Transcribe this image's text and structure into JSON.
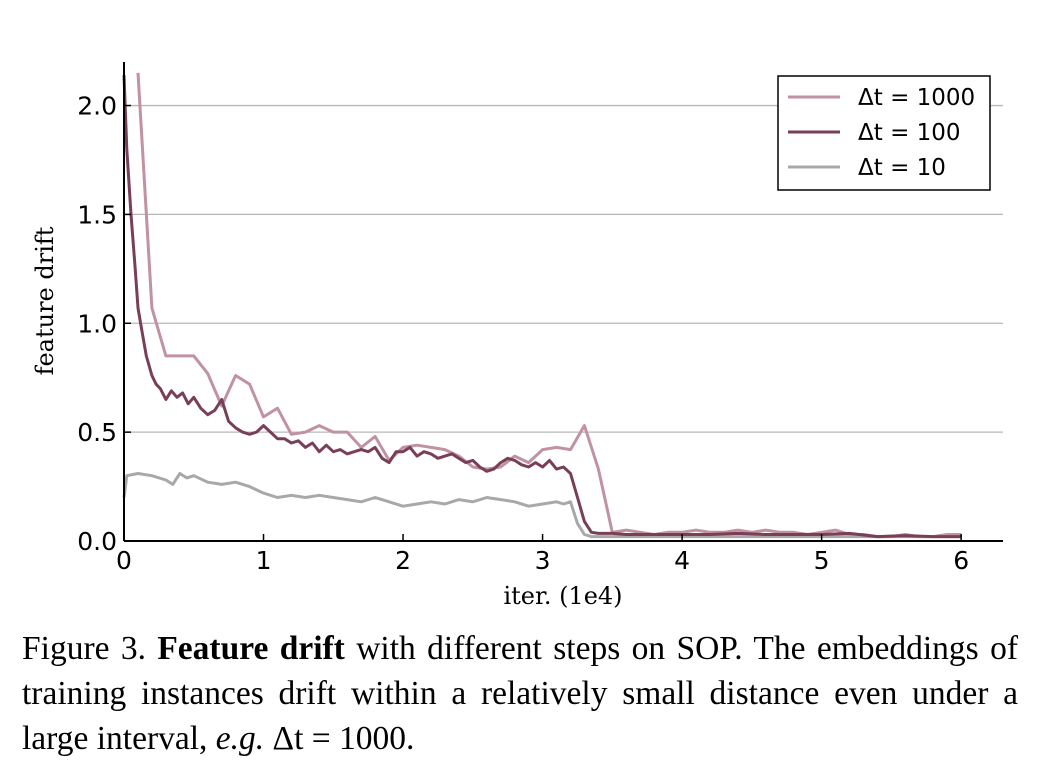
{
  "chart_data": {
    "type": "line",
    "xlabel": "iter. (1e4)",
    "ylabel": "feature drift",
    "xlim": [
      0,
      6.3
    ],
    "ylim": [
      0,
      2.2
    ],
    "x_ticks": [
      "0",
      "1",
      "2",
      "3",
      "4",
      "5",
      "6"
    ],
    "y_ticks": [
      "0.0",
      "0.5",
      "1.0",
      "1.5",
      "2.0"
    ],
    "grid": "horizontal",
    "legend_position": "top-right",
    "series": [
      {
        "name": "Δt = 1000",
        "color": "#c1929f",
        "x": [
          0.1,
          0.2,
          0.3,
          0.4,
          0.5,
          0.6,
          0.7,
          0.8,
          0.9,
          1.0,
          1.1,
          1.2,
          1.3,
          1.4,
          1.5,
          1.6,
          1.7,
          1.8,
          1.9,
          2.0,
          2.1,
          2.2,
          2.3,
          2.4,
          2.5,
          2.6,
          2.7,
          2.8,
          2.9,
          3.0,
          3.1,
          3.2,
          3.3,
          3.4,
          3.5,
          3.6,
          3.7,
          3.8,
          3.9,
          4.0,
          4.1,
          4.2,
          4.3,
          4.4,
          4.5,
          4.6,
          4.7,
          4.8,
          4.9,
          5.0,
          5.1,
          5.2,
          5.3,
          5.4,
          5.5,
          5.6,
          5.7,
          5.8,
          5.9,
          6.0
        ],
        "y": [
          2.15,
          1.07,
          0.85,
          0.85,
          0.85,
          0.77,
          0.62,
          0.76,
          0.72,
          0.57,
          0.61,
          0.49,
          0.5,
          0.53,
          0.5,
          0.5,
          0.43,
          0.48,
          0.37,
          0.43,
          0.44,
          0.43,
          0.42,
          0.39,
          0.34,
          0.33,
          0.34,
          0.39,
          0.36,
          0.42,
          0.43,
          0.42,
          0.53,
          0.33,
          0.04,
          0.05,
          0.04,
          0.03,
          0.04,
          0.04,
          0.05,
          0.04,
          0.04,
          0.05,
          0.04,
          0.05,
          0.04,
          0.04,
          0.03,
          0.04,
          0.05,
          0.03,
          0.03,
          0.02,
          0.02,
          0.03,
          0.02,
          0.02,
          0.03,
          0.03
        ]
      },
      {
        "name": "Δt = 100",
        "color": "#7a3f58",
        "x": [
          0.0,
          0.02,
          0.05,
          0.08,
          0.1,
          0.13,
          0.16,
          0.2,
          0.23,
          0.26,
          0.3,
          0.34,
          0.38,
          0.42,
          0.46,
          0.5,
          0.55,
          0.6,
          0.65,
          0.7,
          0.75,
          0.8,
          0.85,
          0.9,
          0.95,
          1.0,
          1.05,
          1.1,
          1.15,
          1.2,
          1.25,
          1.3,
          1.35,
          1.4,
          1.45,
          1.5,
          1.55,
          1.6,
          1.65,
          1.7,
          1.75,
          1.8,
          1.85,
          1.9,
          1.95,
          2.0,
          2.05,
          2.1,
          2.15,
          2.2,
          2.25,
          2.3,
          2.35,
          2.4,
          2.45,
          2.5,
          2.55,
          2.6,
          2.65,
          2.7,
          2.75,
          2.8,
          2.85,
          2.9,
          2.95,
          3.0,
          3.05,
          3.1,
          3.15,
          3.2,
          3.25,
          3.3,
          3.35,
          3.4,
          3.5,
          3.6,
          3.8,
          4.0,
          4.2,
          4.4,
          4.6,
          4.8,
          5.0,
          5.2,
          5.4,
          5.6,
          5.8,
          6.0
        ],
        "y": [
          2.14,
          1.8,
          1.5,
          1.25,
          1.07,
          0.96,
          0.85,
          0.76,
          0.72,
          0.7,
          0.65,
          0.69,
          0.66,
          0.68,
          0.63,
          0.66,
          0.61,
          0.58,
          0.6,
          0.65,
          0.55,
          0.52,
          0.5,
          0.49,
          0.5,
          0.53,
          0.5,
          0.47,
          0.47,
          0.45,
          0.46,
          0.43,
          0.45,
          0.41,
          0.44,
          0.41,
          0.42,
          0.4,
          0.41,
          0.42,
          0.41,
          0.43,
          0.38,
          0.36,
          0.41,
          0.41,
          0.43,
          0.39,
          0.41,
          0.4,
          0.38,
          0.39,
          0.4,
          0.38,
          0.36,
          0.37,
          0.34,
          0.32,
          0.33,
          0.36,
          0.38,
          0.37,
          0.35,
          0.34,
          0.36,
          0.34,
          0.37,
          0.33,
          0.34,
          0.31,
          0.2,
          0.09,
          0.04,
          0.035,
          0.035,
          0.03,
          0.03,
          0.03,
          0.03,
          0.035,
          0.03,
          0.03,
          0.03,
          0.035,
          0.02,
          0.025,
          0.02,
          0.02
        ]
      },
      {
        "name": "Δt = 10",
        "color": "#a8a8a8",
        "x": [
          0.0,
          0.02,
          0.1,
          0.2,
          0.3,
          0.35,
          0.4,
          0.45,
          0.5,
          0.6,
          0.7,
          0.8,
          0.9,
          1.0,
          1.1,
          1.2,
          1.3,
          1.4,
          1.5,
          1.6,
          1.7,
          1.8,
          1.9,
          2.0,
          2.1,
          2.2,
          2.3,
          2.4,
          2.5,
          2.6,
          2.7,
          2.8,
          2.9,
          3.0,
          3.1,
          3.15,
          3.2,
          3.25,
          3.3,
          3.35,
          3.4,
          3.6,
          3.8,
          4.0,
          4.5,
          5.0,
          5.5,
          6.0
        ],
        "y": [
          0.2,
          0.3,
          0.31,
          0.3,
          0.28,
          0.26,
          0.31,
          0.29,
          0.3,
          0.27,
          0.26,
          0.27,
          0.25,
          0.22,
          0.2,
          0.21,
          0.2,
          0.21,
          0.2,
          0.19,
          0.18,
          0.2,
          0.18,
          0.16,
          0.17,
          0.18,
          0.17,
          0.19,
          0.18,
          0.2,
          0.19,
          0.18,
          0.16,
          0.17,
          0.18,
          0.17,
          0.18,
          0.08,
          0.03,
          0.02,
          0.02,
          0.02,
          0.02,
          0.02,
          0.02,
          0.02,
          0.02,
          0.02
        ]
      }
    ]
  },
  "caption": {
    "prefix": "Figure 3. ",
    "bold": "Feature drift",
    "text1": " with different steps on SOP. The embeddings of training instances drift within a relatively small distance even under a large interval, ",
    "italic": "e.g.",
    "text2": " Δt = 1000."
  }
}
